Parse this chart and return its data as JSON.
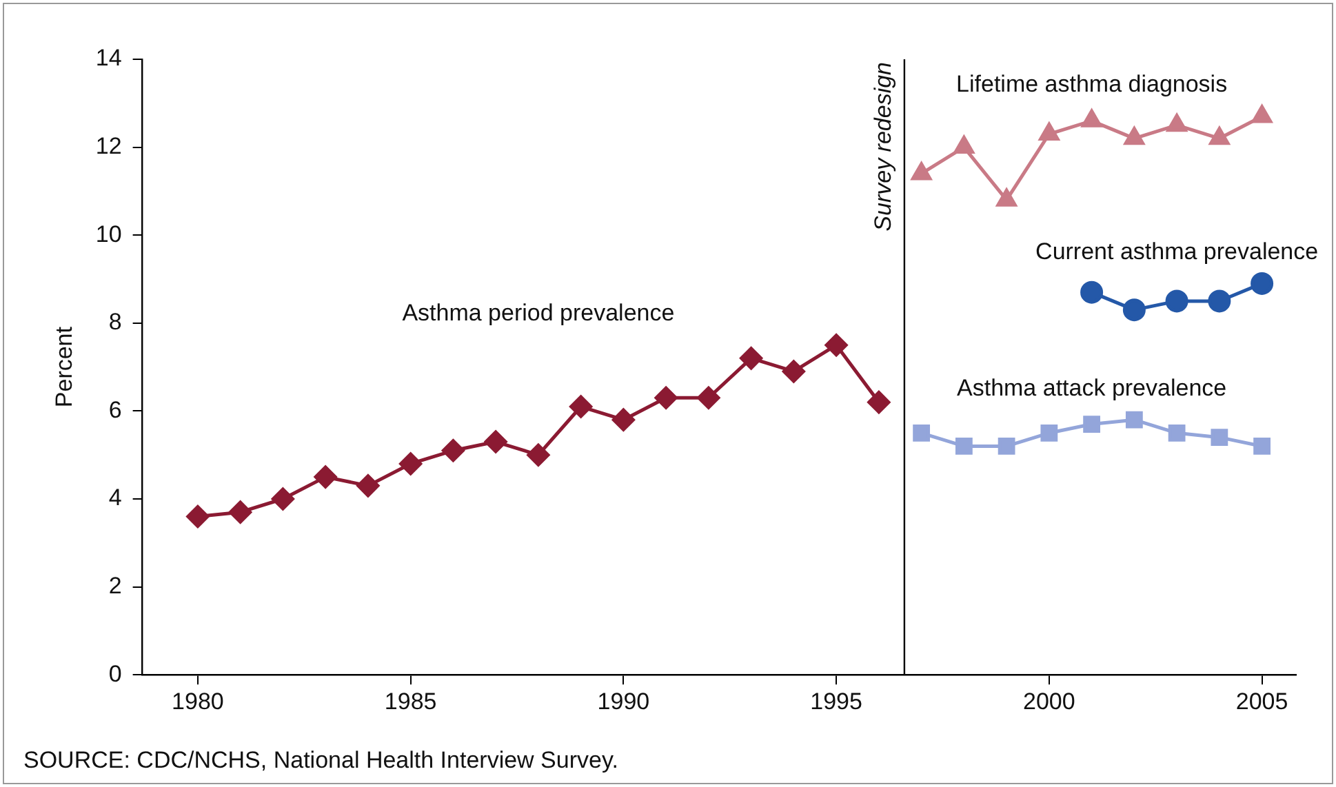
{
  "chart_data": {
    "type": "line",
    "ylabel": "Percent",
    "xlim": [
      1978.7,
      2005.8
    ],
    "xticks": [
      1980,
      1985,
      1990,
      1995,
      2000,
      2005
    ],
    "ylim": [
      0,
      14
    ],
    "yticks": [
      0,
      2,
      4,
      6,
      8,
      10,
      12,
      14
    ],
    "grid": false,
    "legend": false,
    "series": [
      {
        "name": "Asthma period prevalence",
        "color": "#8b1a32",
        "marker": "diamond",
        "x": [
          1980,
          1981,
          1982,
          1983,
          1984,
          1985,
          1986,
          1987,
          1988,
          1989,
          1990,
          1991,
          1992,
          1993,
          1994,
          1995,
          1996
        ],
        "values": [
          3.6,
          3.7,
          4.0,
          4.5,
          4.3,
          4.8,
          5.1,
          5.3,
          5.0,
          6.1,
          5.8,
          6.3,
          6.3,
          7.2,
          6.9,
          7.5,
          6.2
        ]
      },
      {
        "name": "Lifetime asthma diagnosis",
        "color": "#c97a86",
        "marker": "triangle",
        "x": [
          1997,
          1998,
          1999,
          2000,
          2001,
          2002,
          2003,
          2004,
          2005
        ],
        "values": [
          11.4,
          12.0,
          10.8,
          12.3,
          12.6,
          12.2,
          12.5,
          12.2,
          12.7
        ]
      },
      {
        "name": "Current asthma prevalence",
        "color": "#2458a8",
        "marker": "circle",
        "x": [
          2001,
          2002,
          2003,
          2004,
          2005
        ],
        "values": [
          8.7,
          8.3,
          8.5,
          8.5,
          8.9
        ]
      },
      {
        "name": "Asthma attack prevalence",
        "color": "#93a5da",
        "marker": "square",
        "x": [
          1997,
          1998,
          1999,
          2000,
          2001,
          2002,
          2003,
          2004,
          2005
        ],
        "values": [
          5.5,
          5.2,
          5.2,
          5.5,
          5.7,
          5.8,
          5.5,
          5.4,
          5.2
        ]
      }
    ],
    "ref_lines": [
      {
        "axis": "x",
        "value": 1996.6,
        "label": "Survey redesign",
        "color": "#000000"
      }
    ],
    "annotations": [
      "SOURCE: CDC/NCHS, National Health Interview Survey."
    ]
  }
}
